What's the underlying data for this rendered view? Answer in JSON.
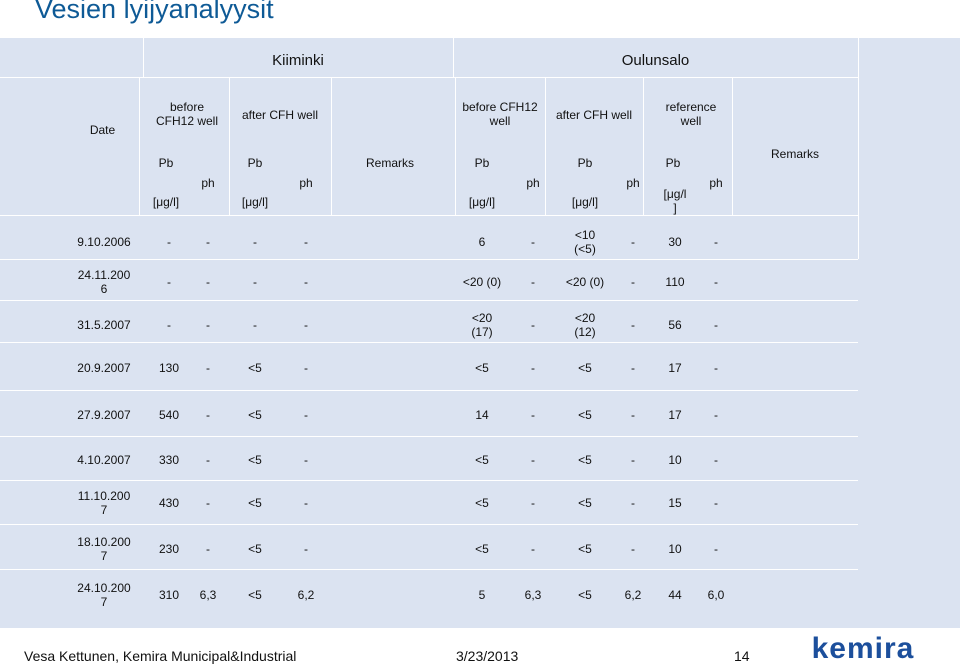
{
  "title": "Vesien lyijyanalyysit",
  "groups": {
    "kiiminki": "Kiiminki",
    "oulunsalo": "Oulunsalo"
  },
  "headers": {
    "date": "Date",
    "k_before": "before\nCFH12 well",
    "k_after": "after CFH well",
    "o_before": "before CFH12\nwell",
    "o_after": "after CFH well",
    "o_reference": "reference\nwell",
    "pb": "Pb",
    "unit": "[μg/l]",
    "unit_wrapped": "[μg/l\n]",
    "ph": "ph",
    "remarks": "Remarks"
  },
  "rows": [
    {
      "date": "9.10.2006",
      "k_pb1": "-",
      "k_ph1": "-",
      "k_pb2": "-",
      "k_ph2": "-",
      "o_pb1": "6",
      "o_ph1": "-",
      "o_pb2": "<10\n(<5)",
      "o_ph2": "-",
      "o_pb3": "30",
      "o_ph3": "-"
    },
    {
      "date": "24.11.200\n6",
      "k_pb1": "-",
      "k_ph1": "-",
      "k_pb2": "-",
      "k_ph2": "-",
      "o_pb1": "<20 (0)",
      "o_ph1": "-",
      "o_pb2": "<20 (0)",
      "o_ph2": "-",
      "o_pb3": "110",
      "o_ph3": "-"
    },
    {
      "date": "31.5.2007",
      "k_pb1": "-",
      "k_ph1": "-",
      "k_pb2": "-",
      "k_ph2": "-",
      "o_pb1": "<20\n(17)",
      "o_ph1": "-",
      "o_pb2": "<20\n(12)",
      "o_ph2": "-",
      "o_pb3": "56",
      "o_ph3": "-"
    },
    {
      "date": "20.9.2007",
      "k_pb1": "130",
      "k_ph1": "-",
      "k_pb2": "<5",
      "k_ph2": "-",
      "o_pb1": "<5",
      "o_ph1": "-",
      "o_pb2": "<5",
      "o_ph2": "-",
      "o_pb3": "17",
      "o_ph3": "-"
    },
    {
      "date": "27.9.2007",
      "k_pb1": "540",
      "k_ph1": "-",
      "k_pb2": "<5",
      "k_ph2": "-",
      "o_pb1": "14",
      "o_ph1": "-",
      "o_pb2": "<5",
      "o_ph2": "-",
      "o_pb3": "17",
      "o_ph3": "-"
    },
    {
      "date": "4.10.2007",
      "k_pb1": "330",
      "k_ph1": "-",
      "k_pb2": "<5",
      "k_ph2": "-",
      "o_pb1": "<5",
      "o_ph1": "-",
      "o_pb2": "<5",
      "o_ph2": "-",
      "o_pb3": "10",
      "o_ph3": "-"
    },
    {
      "date": "11.10.200\n7",
      "k_pb1": "430",
      "k_ph1": "-",
      "k_pb2": "<5",
      "k_ph2": "-",
      "o_pb1": "<5",
      "o_ph1": "-",
      "o_pb2": "<5",
      "o_ph2": "-",
      "o_pb3": "15",
      "o_ph3": "-"
    },
    {
      "date": "18.10.200\n7",
      "k_pb1": "230",
      "k_ph1": "-",
      "k_pb2": "<5",
      "k_ph2": "-",
      "o_pb1": "<5",
      "o_ph1": "-",
      "o_pb2": "<5",
      "o_ph2": "-",
      "o_pb3": "10",
      "o_ph3": "-"
    },
    {
      "date": "24.10.200\n7",
      "k_pb1": "310",
      "k_ph1": "6,3",
      "k_pb2": "<5",
      "k_ph2": "6,2",
      "o_pb1": "5",
      "o_ph1": "6,3",
      "o_pb2": "<5",
      "o_ph2": "6,2",
      "o_pb3": "44",
      "o_ph3": "6,0"
    }
  ],
  "footer": {
    "author": "Vesa Kettunen, Kemira Municipal&Industrial",
    "date": "3/23/2013",
    "page": "14",
    "logo": "kemira"
  },
  "colors": {
    "title": "#0e5a96",
    "table_bg": "#dbe3f1",
    "logo": "#1c4f9c"
  }
}
